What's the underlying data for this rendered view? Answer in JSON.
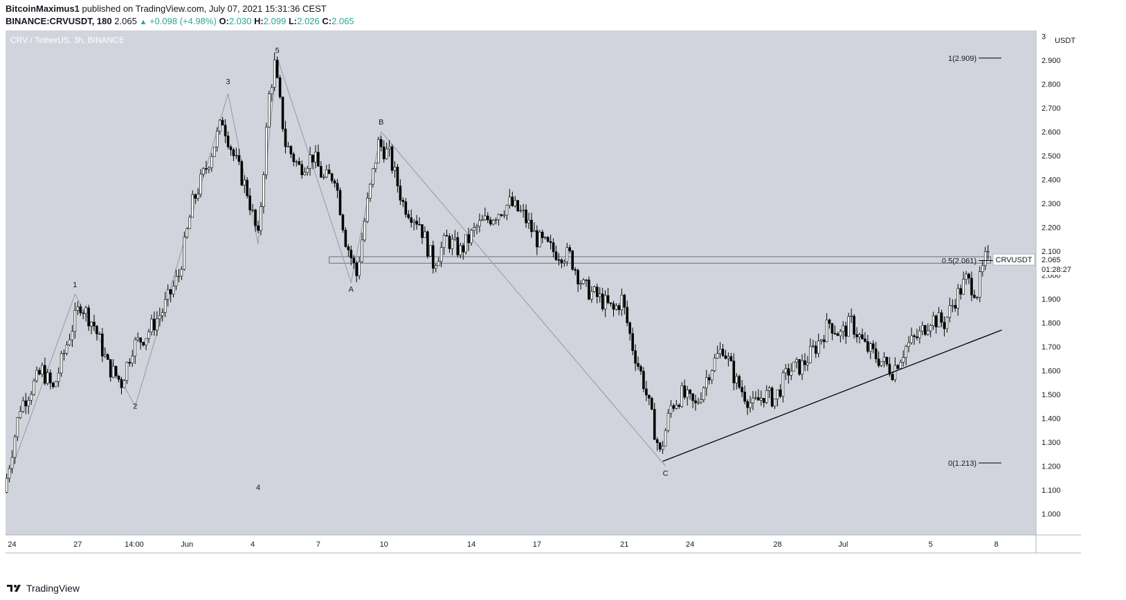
{
  "header": {
    "author": "BitcoinMaximus1",
    "published_text": "published on TradingView.com, July 07, 2021 15:31:36 CEST",
    "symbol": "BINANCE:CRVUSDT, 180",
    "last": "2.065",
    "change": "+0.098 (+4.98%)",
    "o_label": "O:",
    "o_value": "2.030",
    "h_label": "H:",
    "h_value": "2.099",
    "l_label": "L:",
    "l_value": "2.026",
    "c_label": "C:",
    "c_value": "2.065"
  },
  "footer": {
    "brand": "TradingView",
    "logo_icon": "tradingview-logo-icon"
  },
  "colors": {
    "plot_bg": "#d1d4dc",
    "candle": "#000000",
    "grid_text": "#131722",
    "wave_line": "#9598a1",
    "price_tag_bg": "#ffffff",
    "price_tag_text": "#131722"
  },
  "chart_data": {
    "type": "candlestick",
    "title": "CRV / TetherUS, 3h, BINANCE",
    "y_unit": "USDT",
    "ylim": [
      0.9,
      3.0
    ],
    "x_ticks": [
      {
        "label": "24",
        "date": "2021-05-24"
      },
      {
        "label": "27",
        "date": "2021-05-27"
      },
      {
        "label": "14:00",
        "date": "2021-05-29 14:00"
      },
      {
        "label": "Jun",
        "date": "2021-06-01"
      },
      {
        "label": "4",
        "date": "2021-06-04"
      },
      {
        "label": "7",
        "date": "2021-06-07"
      },
      {
        "label": "10",
        "date": "2021-06-10"
      },
      {
        "label": "14",
        "date": "2021-06-14"
      },
      {
        "label": "17",
        "date": "2021-06-17"
      },
      {
        "label": "21",
        "date": "2021-06-21"
      },
      {
        "label": "24",
        "date": "2021-06-24"
      },
      {
        "label": "28",
        "date": "2021-06-28"
      },
      {
        "label": "Jul",
        "date": "2021-07-01"
      },
      {
        "label": "5",
        "date": "2021-07-05"
      },
      {
        "label": "8",
        "date": "2021-07-08"
      }
    ],
    "y_ticks": [
      "1.000",
      "1.100",
      "1.200",
      "1.300",
      "1.400",
      "1.500",
      "1.600",
      "1.700",
      "1.800",
      "1.900",
      "2.000",
      "2.100",
      "2.200",
      "2.300",
      "2.400",
      "2.500",
      "2.600",
      "2.700",
      "2.800",
      "2.900",
      "3"
    ],
    "price_path": [
      {
        "date": "2021-05-23 18:00",
        "price": 1.09
      },
      {
        "date": "2021-05-24 12:00",
        "price": 1.45
      },
      {
        "date": "2021-05-25 12:00",
        "price": 1.6
      },
      {
        "date": "2021-05-26 00:00",
        "price": 1.52
      },
      {
        "date": "2021-05-26 18:00",
        "price": 1.75
      },
      {
        "date": "2021-05-27 06:00",
        "price": 1.88
      },
      {
        "date": "2021-05-27 21:00",
        "price": 1.79
      },
      {
        "date": "2021-05-28 12:00",
        "price": 1.62
      },
      {
        "date": "2021-05-29 03:00",
        "price": 1.55
      },
      {
        "date": "2021-05-29 15:00",
        "price": 1.7
      },
      {
        "date": "2021-05-30 06:00",
        "price": 1.75
      },
      {
        "date": "2021-05-31 00:00",
        "price": 1.85
      },
      {
        "date": "2021-05-31 18:00",
        "price": 2.0
      },
      {
        "date": "2021-06-01 09:00",
        "price": 2.3
      },
      {
        "date": "2021-06-02 00:00",
        "price": 2.45
      },
      {
        "date": "2021-06-02 18:00",
        "price": 2.65
      },
      {
        "date": "2021-06-03 06:00",
        "price": 2.5
      },
      {
        "date": "2021-06-03 21:00",
        "price": 2.35
      },
      {
        "date": "2021-06-04 09:00",
        "price": 2.15
      },
      {
        "date": "2021-06-04 21:00",
        "price": 2.75
      },
      {
        "date": "2021-06-05 03:00",
        "price": 2.88
      },
      {
        "date": "2021-06-05 15:00",
        "price": 2.55
      },
      {
        "date": "2021-06-06 06:00",
        "price": 2.45
      },
      {
        "date": "2021-06-06 21:00",
        "price": 2.5
      },
      {
        "date": "2021-06-07 09:00",
        "price": 2.4
      },
      {
        "date": "2021-06-07 21:00",
        "price": 2.42
      },
      {
        "date": "2021-06-08 09:00",
        "price": 2.15
      },
      {
        "date": "2021-06-08 21:00",
        "price": 2.0
      },
      {
        "date": "2021-06-09 09:00",
        "price": 2.3
      },
      {
        "date": "2021-06-09 21:00",
        "price": 2.55
      },
      {
        "date": "2021-06-10 09:00",
        "price": 2.5
      },
      {
        "date": "2021-06-11 00:00",
        "price": 2.3
      },
      {
        "date": "2021-06-11 18:00",
        "price": 2.22
      },
      {
        "date": "2021-06-12 09:00",
        "price": 2.05
      },
      {
        "date": "2021-06-13 00:00",
        "price": 2.15
      },
      {
        "date": "2021-06-13 15:00",
        "price": 2.1
      },
      {
        "date": "2021-06-14 09:00",
        "price": 2.2
      },
      {
        "date": "2021-06-15 03:00",
        "price": 2.25
      },
      {
        "date": "2021-06-15 21:00",
        "price": 2.3
      },
      {
        "date": "2021-06-16 12:00",
        "price": 2.25
      },
      {
        "date": "2021-06-17 03:00",
        "price": 2.15
      },
      {
        "date": "2021-06-17 21:00",
        "price": 2.1
      },
      {
        "date": "2021-06-18 15:00",
        "price": 2.08
      },
      {
        "date": "2021-06-19 06:00",
        "price": 1.95
      },
      {
        "date": "2021-06-20 00:00",
        "price": 1.9
      },
      {
        "date": "2021-06-20 15:00",
        "price": 1.85
      },
      {
        "date": "2021-06-21 00:00",
        "price": 1.9
      },
      {
        "date": "2021-06-21 12:00",
        "price": 1.7
      },
      {
        "date": "2021-06-22 00:00",
        "price": 1.55
      },
      {
        "date": "2021-06-22 09:00",
        "price": 1.4
      },
      {
        "date": "2021-06-22 18:00",
        "price": 1.25
      },
      {
        "date": "2021-06-23 06:00",
        "price": 1.45
      },
      {
        "date": "2021-06-23 18:00",
        "price": 1.5
      },
      {
        "date": "2021-06-24 09:00",
        "price": 1.45
      },
      {
        "date": "2021-06-25 00:00",
        "price": 1.6
      },
      {
        "date": "2021-06-25 15:00",
        "price": 1.7
      },
      {
        "date": "2021-06-26 06:00",
        "price": 1.55
      },
      {
        "date": "2021-06-27 00:00",
        "price": 1.45
      },
      {
        "date": "2021-06-27 12:00",
        "price": 1.5
      },
      {
        "date": "2021-06-28 00:00",
        "price": 1.48
      },
      {
        "date": "2021-06-28 15:00",
        "price": 1.6
      },
      {
        "date": "2021-06-29 06:00",
        "price": 1.62
      },
      {
        "date": "2021-06-29 21:00",
        "price": 1.7
      },
      {
        "date": "2021-06-30 12:00",
        "price": 1.8
      },
      {
        "date": "2021-07-01 00:00",
        "price": 1.75
      },
      {
        "date": "2021-07-01 12:00",
        "price": 1.8
      },
      {
        "date": "2021-07-02 03:00",
        "price": 1.7
      },
      {
        "date": "2021-07-02 18:00",
        "price": 1.65
      },
      {
        "date": "2021-07-03 09:00",
        "price": 1.6
      },
      {
        "date": "2021-07-04 00:00",
        "price": 1.7
      },
      {
        "date": "2021-07-04 15:00",
        "price": 1.75
      },
      {
        "date": "2021-07-05 03:00",
        "price": 1.82
      },
      {
        "date": "2021-07-05 18:00",
        "price": 1.8
      },
      {
        "date": "2021-07-06 06:00",
        "price": 1.9
      },
      {
        "date": "2021-07-06 18:00",
        "price": 1.98
      },
      {
        "date": "2021-07-07 06:00",
        "price": 1.93
      },
      {
        "date": "2021-07-07 15:00",
        "price": 2.065
      }
    ],
    "wave_labels": [
      {
        "label": "1",
        "date": "2021-05-26 21:00",
        "price": 1.95
      },
      {
        "label": "2",
        "date": "2021-05-29 15:00",
        "price": 1.44
      },
      {
        "label": "3",
        "date": "2021-06-02 21:00",
        "price": 2.8
      },
      {
        "label": "4",
        "date": "2021-06-04 06:00",
        "price": 1.1
      },
      {
        "label": "5",
        "date": "2021-06-05 03:00",
        "price": 2.93
      },
      {
        "label": "A",
        "date": "2021-06-08 12:00",
        "price": 1.93
      },
      {
        "label": "B",
        "date": "2021-06-09 21:00",
        "price": 2.63
      },
      {
        "label": "C",
        "date": "2021-06-22 21:00",
        "price": 1.16
      }
    ],
    "wave_path": [
      {
        "date": "2021-05-23 18:00",
        "price": 1.13
      },
      {
        "date": "2021-05-26 21:00",
        "price": 1.92
      },
      {
        "date": "2021-05-29 15:00",
        "price": 1.45
      },
      {
        "date": "2021-06-02 21:00",
        "price": 2.76
      },
      {
        "date": "2021-06-04 06:00",
        "price": 2.13
      },
      {
        "date": "2021-06-05 03:00",
        "price": 2.91
      },
      {
        "date": "2021-06-08 12:00",
        "price": 1.97
      },
      {
        "date": "2021-06-09 21:00",
        "price": 2.6
      },
      {
        "date": "2021-06-22 21:00",
        "price": 1.2
      }
    ],
    "support_trendline": [
      {
        "date": "2021-06-22 18:00",
        "price": 1.22
      },
      {
        "date": "2021-07-08 06:00",
        "price": 1.77
      }
    ],
    "resistance_zone": {
      "start": "2021-06-07 12:00",
      "end": "2021-07-07 18:00",
      "top": 2.077,
      "bottom": 2.05
    },
    "fib_levels": [
      {
        "label": "1(2.909)",
        "price": 2.909
      },
      {
        "label": "0.5(2.061)",
        "price": 2.061
      },
      {
        "label": "0(1.213)",
        "price": 1.213
      }
    ],
    "price_tag": {
      "symbol": "CRVUSDT",
      "price": "2.065",
      "countdown": "01:28:27"
    }
  }
}
